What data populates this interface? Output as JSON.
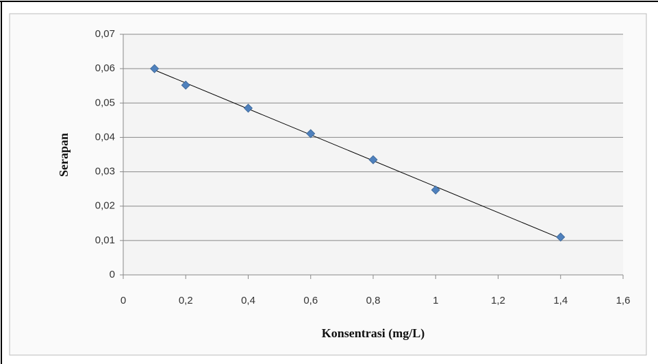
{
  "chart_data": {
    "type": "scatter",
    "x_label": "Konsentrasi (mg/L)",
    "y_label": "Serapan",
    "x": [
      0.1,
      0.2,
      0.4,
      0.6,
      0.8,
      1.0,
      1.4
    ],
    "series": [
      {
        "color": "#4f81bd",
        "values": [
          0.06,
          0.0552,
          0.0485,
          0.0411,
          0.0335,
          0.0247,
          0.011
        ]
      }
    ],
    "trendline": true,
    "grid": true,
    "xlim": [
      0,
      1.6
    ],
    "xticks": [
      0,
      {
        "value": 0.2,
        "label": "0,2"
      },
      {
        "value": 0.4,
        "label": "0,4"
      },
      {
        "value": 0.6,
        "label": "0,6"
      },
      {
        "value": 0.8,
        "label": "0,8"
      },
      1,
      {
        "value": 1.2,
        "label": "1,2"
      },
      {
        "value": 1.4,
        "label": "1,4"
      },
      {
        "value": 1.6,
        "label": "1,6"
      }
    ],
    "ylim": [
      0,
      0.07
    ],
    "yticks": [
      0,
      {
        "value": 0.01,
        "label": "0,01"
      },
      {
        "value": 0.02,
        "label": "0,02"
      },
      {
        "value": 0.03,
        "label": "0,03"
      },
      {
        "value": 0.04,
        "label": "0,04"
      },
      {
        "value": 0.05,
        "label": "0,05"
      },
      {
        "value": 0.06,
        "label": "0,06"
      },
      {
        "value": 0.07,
        "label": "0,07"
      }
    ]
  }
}
